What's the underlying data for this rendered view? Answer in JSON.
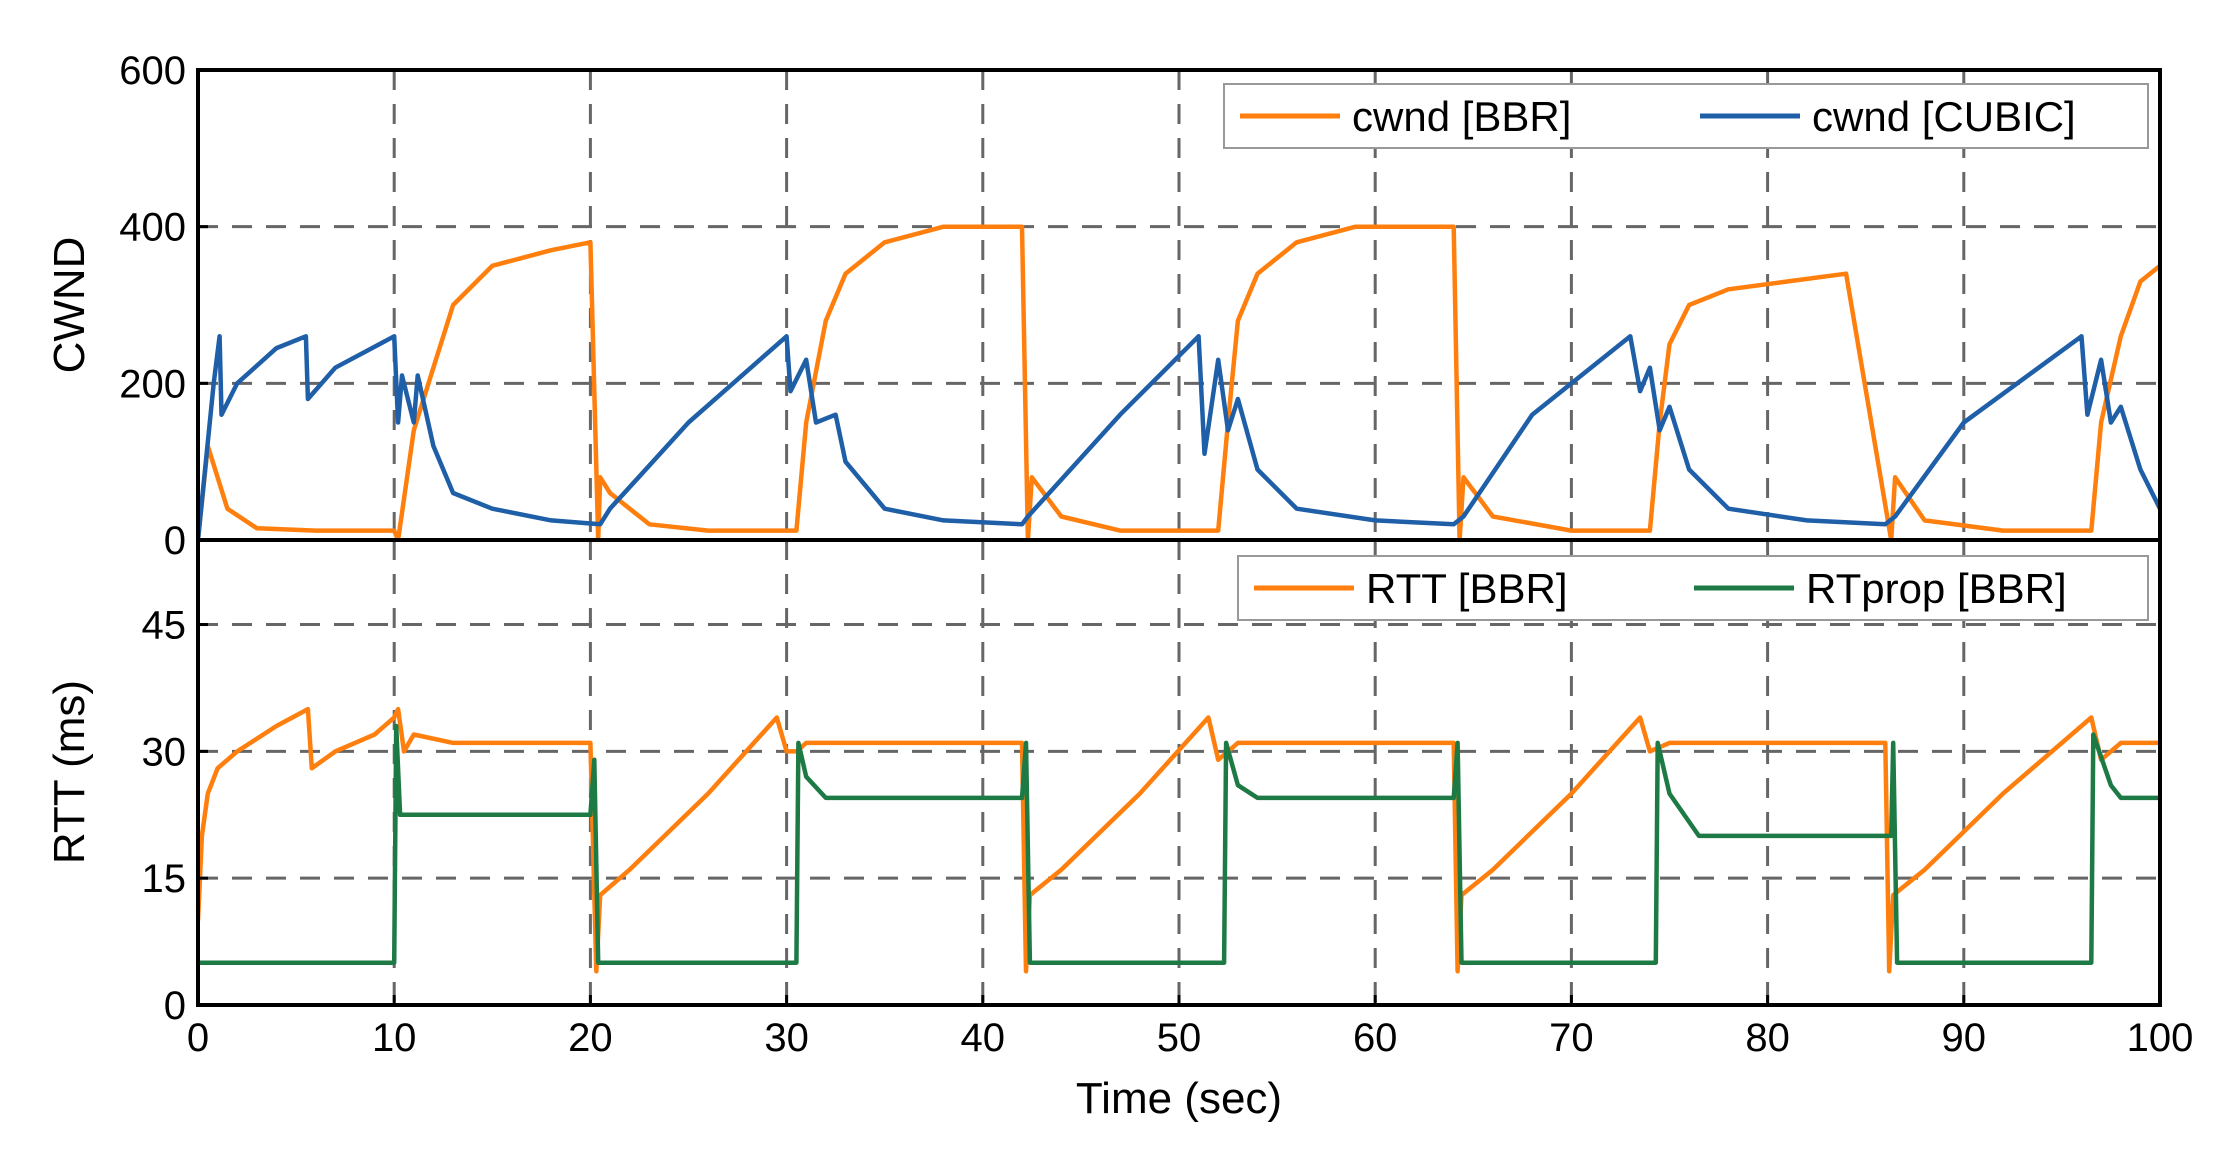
{
  "chart_data": [
    {
      "type": "line",
      "ylabel": "CWND",
      "xlabel": "",
      "xlim": [
        0,
        100
      ],
      "ylim": [
        0,
        600
      ],
      "yticks": [
        "0",
        "200",
        "400",
        "600"
      ],
      "grid": true,
      "legend_position": "top-right",
      "colors": {
        "cwnd_bbr": "#ff7f0e",
        "cwnd_cubic": "#1f5fa8"
      },
      "series": [
        {
          "name": "cwnd [BBR]",
          "color": "#ff7f0e",
          "x": [
            0,
            0.5,
            1.5,
            3,
            6,
            10,
            10.2,
            11,
            12,
            13,
            15,
            18,
            20,
            20.4,
            20.5,
            21,
            23,
            26,
            30.5,
            31,
            32,
            33,
            35,
            38,
            40,
            42,
            42.3,
            42.5,
            44,
            47,
            52,
            52.5,
            53,
            54,
            56,
            59,
            62,
            64,
            64.3,
            64.5,
            66,
            70,
            74,
            74.5,
            75,
            76,
            78,
            81,
            84,
            86.3,
            86.5,
            88,
            92,
            96.5,
            97,
            98,
            99,
            100
          ],
          "values": [
            0,
            120,
            40,
            15,
            12,
            12,
            0,
            140,
            220,
            300,
            350,
            370,
            380,
            0,
            80,
            60,
            20,
            12,
            12,
            150,
            280,
            340,
            380,
            400,
            400,
            400,
            0,
            80,
            30,
            12,
            12,
            150,
            280,
            340,
            380,
            400,
            400,
            400,
            0,
            80,
            30,
            12,
            12,
            150,
            250,
            300,
            320,
            330,
            340,
            0,
            80,
            25,
            12,
            12,
            150,
            260,
            330,
            350
          ]
        },
        {
          "name": "cwnd [CUBIC]",
          "color": "#1f5fa8",
          "x": [
            0,
            0.8,
            1.1,
            1.2,
            2,
            4,
            5.5,
            5.6,
            7,
            10,
            10.2,
            10.4,
            11,
            11.2,
            12,
            13,
            15,
            18,
            20.5,
            21,
            25,
            30,
            30.2,
            31,
            31.5,
            32.5,
            33,
            35,
            38,
            42,
            42.3,
            47,
            51,
            51.3,
            52,
            52.5,
            53,
            54,
            56,
            60,
            64,
            64.5,
            68,
            73,
            73.5,
            74,
            74.5,
            75,
            76,
            78,
            82,
            86,
            86.5,
            90,
            96,
            96.3,
            97,
            97.5,
            98,
            99,
            100
          ],
          "values": [
            0,
            200,
            260,
            160,
            200,
            245,
            260,
            180,
            220,
            260,
            150,
            210,
            150,
            210,
            120,
            60,
            40,
            25,
            20,
            40,
            150,
            260,
            190,
            230,
            150,
            160,
            100,
            40,
            25,
            20,
            30,
            160,
            260,
            110,
            230,
            140,
            180,
            90,
            40,
            25,
            20,
            30,
            160,
            260,
            190,
            220,
            140,
            170,
            90,
            40,
            25,
            20,
            30,
            150,
            260,
            160,
            230,
            150,
            170,
            90,
            40
          ]
        }
      ]
    },
    {
      "type": "line",
      "ylabel": "RTT (ms)",
      "xlabel": "Time (sec)",
      "xlim": [
        0,
        100
      ],
      "ylim": [
        0,
        55
      ],
      "yticks": [
        "0",
        "15",
        "30",
        "45"
      ],
      "xticks": [
        "0",
        "10",
        "20",
        "30",
        "40",
        "50",
        "60",
        "70",
        "80",
        "90",
        "100"
      ],
      "grid": true,
      "legend_position": "top-right",
      "colors": {
        "rtt_bbr": "#ff7f0e",
        "rtprop_bbr": "#1e7a45"
      },
      "series": [
        {
          "name": "RTT [BBR]",
          "color": "#ff7f0e",
          "x": [
            0,
            0.2,
            0.5,
            1,
            2,
            4,
            5.6,
            5.8,
            7,
            9,
            10,
            10.2,
            10.5,
            11,
            13,
            16,
            20,
            20.3,
            20.5,
            22,
            26,
            29.5,
            30,
            30.5,
            31,
            34,
            42,
            42.2,
            42.4,
            44,
            48,
            51.5,
            52,
            53,
            55,
            58,
            64,
            64.2,
            64.4,
            66,
            70,
            73.5,
            74,
            75,
            78,
            86,
            86.2,
            86.4,
            88,
            92,
            96.5,
            97,
            98,
            100
          ],
          "values": [
            10,
            20,
            25,
            28,
            30,
            33,
            35,
            28,
            30,
            32,
            34,
            35,
            30,
            32,
            31,
            31,
            31,
            4,
            13,
            16,
            25,
            34,
            30,
            30,
            31,
            31,
            31,
            4,
            13,
            16,
            25,
            34,
            29,
            31,
            31,
            31,
            31,
            4,
            13,
            16,
            25,
            34,
            30,
            31,
            31,
            31,
            4,
            13,
            16,
            25,
            34,
            29,
            31,
            31
          ]
        },
        {
          "name": "RTprop [BBR]",
          "color": "#1e7a45",
          "x": [
            0,
            10,
            10.1,
            10.3,
            20,
            20.2,
            20.4,
            30.5,
            30.6,
            31,
            32,
            42,
            42.2,
            42.4,
            52.3,
            52.4,
            53,
            54,
            64,
            64.2,
            64.4,
            74.3,
            74.4,
            75,
            76.5,
            86.3,
            86.4,
            86.6,
            96.5,
            96.6,
            97.5,
            98,
            100
          ],
          "values": [
            5,
            5,
            33,
            22.5,
            22.5,
            29,
            5,
            5,
            31,
            27,
            24.5,
            24.5,
            31,
            5,
            5,
            31,
            26,
            24.5,
            24.5,
            31,
            5,
            5,
            31,
            25,
            20,
            20,
            31,
            5,
            5,
            32,
            26,
            24.5,
            24.5
          ]
        }
      ]
    }
  ]
}
